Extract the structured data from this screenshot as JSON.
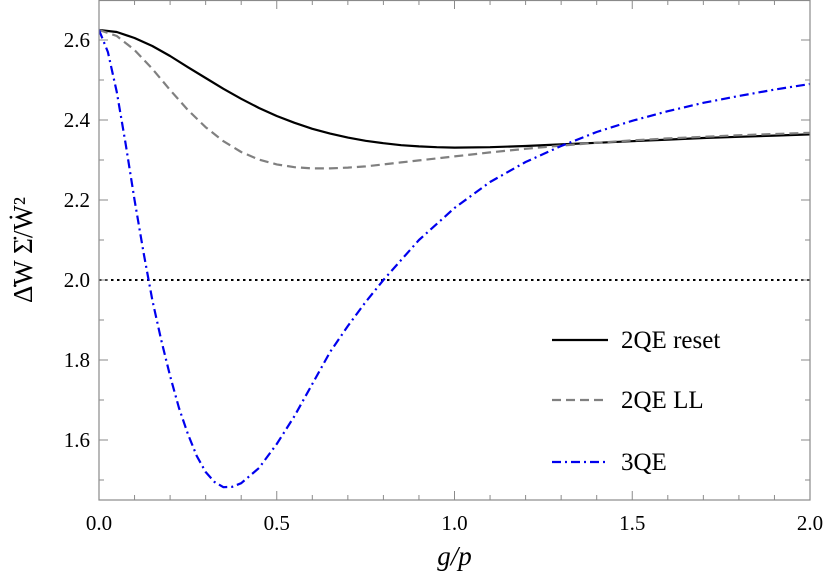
{
  "chart_data": {
    "type": "line",
    "title": "",
    "xlabel": "g/p",
    "ylabel": "Δ̇W Σ̇/Ẇ²",
    "xlim": [
      0.0,
      2.0
    ],
    "ylim": [
      1.45,
      2.7
    ],
    "x_ticks": [
      {
        "value": 0.0,
        "label": "0.0"
      },
      {
        "value": 0.5,
        "label": "0.5"
      },
      {
        "value": 1.0,
        "label": "1.0"
      },
      {
        "value": 1.5,
        "label": "1.5"
      },
      {
        "value": 2.0,
        "label": "2.0"
      }
    ],
    "y_ticks": [
      {
        "value": 1.6,
        "label": "1.6"
      },
      {
        "value": 1.8,
        "label": "1.8"
      },
      {
        "value": 2.0,
        "label": "2.0"
      },
      {
        "value": 2.2,
        "label": "2.2"
      },
      {
        "value": 2.4,
        "label": "2.4"
      },
      {
        "value": 2.6,
        "label": "2.6"
      }
    ],
    "grid": false,
    "legend_position": "bottom-right",
    "reference_line": {
      "y": 2.0,
      "style": "dotted",
      "color": "#000000"
    },
    "series": [
      {
        "name": "2QE reset",
        "color": "#000000",
        "style": "solid",
        "x": [
          0.0,
          0.05,
          0.1,
          0.15,
          0.2,
          0.25,
          0.3,
          0.35,
          0.4,
          0.45,
          0.5,
          0.55,
          0.6,
          0.65,
          0.7,
          0.75,
          0.8,
          0.85,
          0.9,
          0.95,
          1.0,
          1.1,
          1.2,
          1.3,
          1.4,
          1.5,
          1.6,
          1.7,
          1.8,
          1.9,
          2.0
        ],
        "y": [
          2.625,
          2.62,
          2.605,
          2.585,
          2.56,
          2.532,
          2.505,
          2.478,
          2.453,
          2.43,
          2.41,
          2.393,
          2.378,
          2.366,
          2.356,
          2.348,
          2.342,
          2.337,
          2.334,
          2.332,
          2.331,
          2.332,
          2.335,
          2.339,
          2.343,
          2.347,
          2.351,
          2.355,
          2.358,
          2.361,
          2.364
        ]
      },
      {
        "name": "2QE LL",
        "color": "#808080",
        "style": "dashed",
        "x": [
          0.0,
          0.05,
          0.1,
          0.15,
          0.2,
          0.25,
          0.3,
          0.35,
          0.4,
          0.45,
          0.5,
          0.55,
          0.6,
          0.65,
          0.7,
          0.75,
          0.8,
          0.85,
          0.9,
          0.95,
          1.0,
          1.1,
          1.2,
          1.3,
          1.4,
          1.5,
          1.6,
          1.7,
          1.8,
          1.9,
          2.0
        ],
        "y": [
          2.625,
          2.61,
          2.575,
          2.528,
          2.475,
          2.425,
          2.382,
          2.347,
          2.32,
          2.301,
          2.289,
          2.282,
          2.279,
          2.279,
          2.281,
          2.284,
          2.289,
          2.294,
          2.299,
          2.304,
          2.309,
          2.319,
          2.328,
          2.336,
          2.343,
          2.349,
          2.354,
          2.358,
          2.362,
          2.365,
          2.368
        ]
      },
      {
        "name": "3QE",
        "color": "#0000ee",
        "style": "dash-dot",
        "x": [
          0.0,
          0.025,
          0.05,
          0.075,
          0.1,
          0.125,
          0.15,
          0.175,
          0.2,
          0.225,
          0.25,
          0.275,
          0.3,
          0.325,
          0.35,
          0.375,
          0.4,
          0.45,
          0.5,
          0.55,
          0.6,
          0.65,
          0.7,
          0.75,
          0.8,
          0.9,
          1.0,
          1.1,
          1.2,
          1.3,
          1.4,
          1.5,
          1.6,
          1.7,
          1.8,
          1.9,
          2.0
        ],
        "y": [
          2.625,
          2.57,
          2.47,
          2.34,
          2.2,
          2.07,
          1.95,
          1.85,
          1.76,
          1.68,
          1.615,
          1.56,
          1.52,
          1.495,
          1.482,
          1.483,
          1.492,
          1.53,
          1.59,
          1.66,
          1.74,
          1.82,
          1.885,
          1.945,
          2.0,
          2.1,
          2.18,
          2.245,
          2.295,
          2.335,
          2.37,
          2.398,
          2.422,
          2.443,
          2.46,
          2.476,
          2.49
        ]
      }
    ]
  }
}
